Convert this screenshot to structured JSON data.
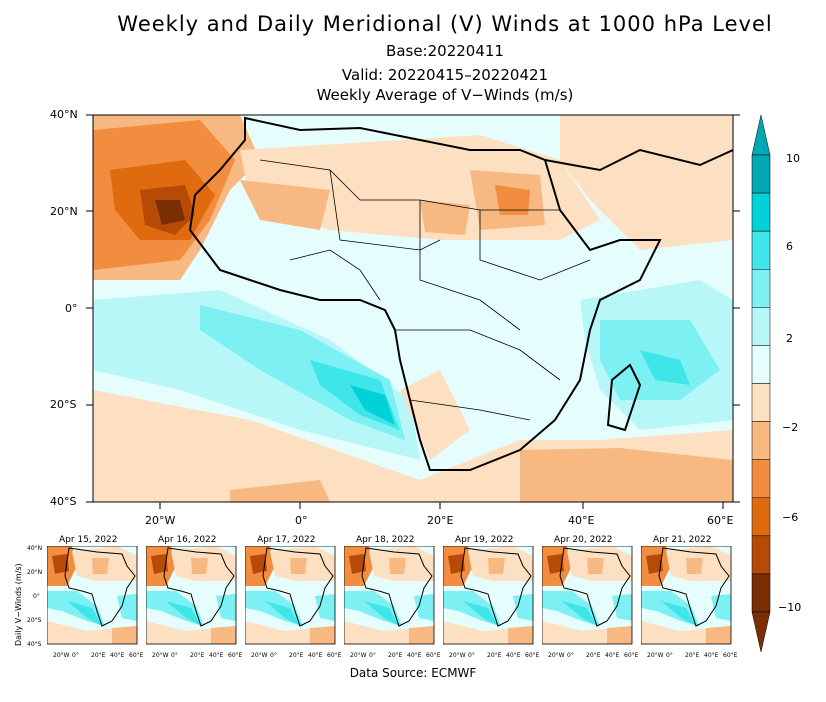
{
  "title": "Weekly and Daily Meridional (V) Winds at 1000 hPa Level",
  "base": "Base:20220411",
  "valid": "Valid: 20220415–20220421",
  "subtitle": "Weekly Average of V−Winds (m/s)",
  "lat_labels": [
    "40°N",
    "20°N",
    "0°",
    "20°S",
    "40°S"
  ],
  "lon_labels": [
    "20°W",
    "0°",
    "20°E",
    "40°E",
    "60°E"
  ],
  "colorbar": {
    "labels": [
      "10",
      "6",
      "2",
      "−2",
      "−6",
      "−10"
    ],
    "colors": [
      "#00a8b4",
      "#00d2d8",
      "#3ee6ea",
      "#7cf0f2",
      "#b8f7f8",
      "#e6fdfd",
      "#fde0c2",
      "#f7b882",
      "#f28c3e",
      "#e06a10",
      "#b84a08",
      "#7a2e04"
    ]
  },
  "small_ylabel": "Daily V−Winds (m/s)",
  "small_lat_labels": [
    "40°N",
    "20°N",
    "0°",
    "20°S",
    "40°S"
  ],
  "small_lon_labels": [
    "20°W",
    "0°",
    "20°E",
    "40°E",
    "60°E"
  ],
  "days": [
    "Apr 15, 2022",
    "Apr 16, 2022",
    "Apr 17, 2022",
    "Apr 18, 2022",
    "Apr 19, 2022",
    "Apr 20, 2022",
    "Apr 21, 2022"
  ],
  "source": "Data Source: ECMWF"
}
